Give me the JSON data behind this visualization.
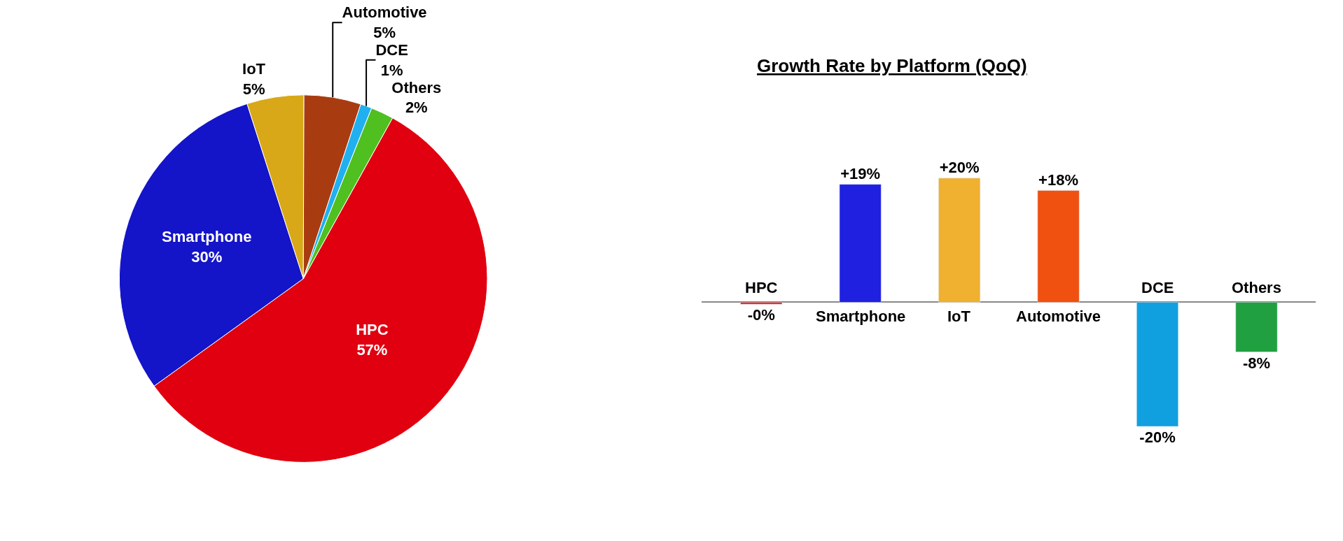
{
  "chart_data": [
    {
      "type": "pie",
      "categories": [
        "HPC",
        "Smartphone",
        "IoT",
        "Automotive",
        "DCE",
        "Others"
      ],
      "values": [
        57,
        30,
        5,
        5,
        1,
        2
      ],
      "colors": [
        "#e00010",
        "#1414c8",
        "#d8a818",
        "#a83c10",
        "#20b0f0",
        "#50c020"
      ],
      "value_labels": [
        "57%",
        "30%",
        "5%",
        "5%",
        "1%",
        "2%"
      ]
    },
    {
      "type": "bar",
      "title": "Growth Rate by Platform (QoQ)",
      "categories": [
        "HPC",
        "Smartphone",
        "IoT",
        "Automotive",
        "DCE",
        "Others"
      ],
      "values": [
        -0.3,
        19,
        20,
        18,
        -20,
        -8
      ],
      "value_labels": [
        "-0%",
        "+19%",
        "+20%",
        "+18%",
        "-20%",
        "-8%"
      ],
      "colors": [
        "#d02020",
        "#2020e0",
        "#f0b030",
        "#f05010",
        "#10a0e0",
        "#20a040"
      ]
    }
  ]
}
